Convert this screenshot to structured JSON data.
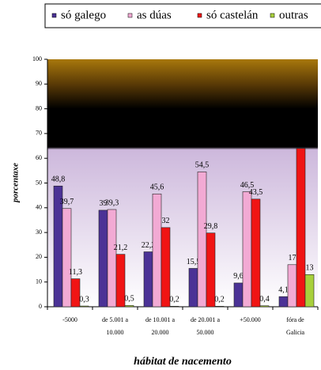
{
  "chart_data": {
    "type": "bar",
    "x_label": "hábitat de nacemento",
    "y_label": "porcentaxe",
    "categories": [
      [
        "-5000"
      ],
      [
        "de 5.001 a",
        "10.000"
      ],
      [
        "de 10.001 a",
        "20.000"
      ],
      [
        "de 20.001 a",
        "50.000"
      ],
      [
        "+50.000"
      ],
      [
        "fóra de",
        "Galicia"
      ]
    ],
    "series": [
      {
        "name": "só galego",
        "color": "#4b3296",
        "values": [
          48.8,
          39,
          22.2,
          15.5,
          9.6,
          4.1
        ],
        "value_labels": [
          "48,8",
          "39",
          "22,2",
          "15,5",
          "9,6",
          "4,1"
        ]
      },
      {
        "name": "as dúas",
        "color": "#f2aad4",
        "values": [
          39.7,
          39.3,
          45.6,
          54.5,
          46.5,
          17
        ],
        "value_labels": [
          "39,7",
          "39,3",
          "45,6",
          "54,5",
          "46,5",
          "17"
        ]
      },
      {
        "name": "só castelán",
        "color": "#f01414",
        "values": [
          11.3,
          21.2,
          32,
          29.8,
          43.5,
          64
        ],
        "value_labels": [
          "11,3",
          "21,2",
          "32",
          "29,8",
          "43,5",
          null
        ]
      },
      {
        "name": "outras",
        "color": "#a8d03c",
        "values": [
          0.3,
          0.5,
          0.2,
          0.2,
          0.4,
          13
        ],
        "value_labels": [
          "0,3",
          "0,5",
          "0,2",
          "0,2",
          "0,4",
          "13"
        ]
      }
    ],
    "ylim": [
      0,
      100
    ],
    "yticks": [
      0,
      10,
      20,
      30,
      40,
      50,
      60,
      70,
      80,
      90,
      100
    ],
    "grid": false
  }
}
